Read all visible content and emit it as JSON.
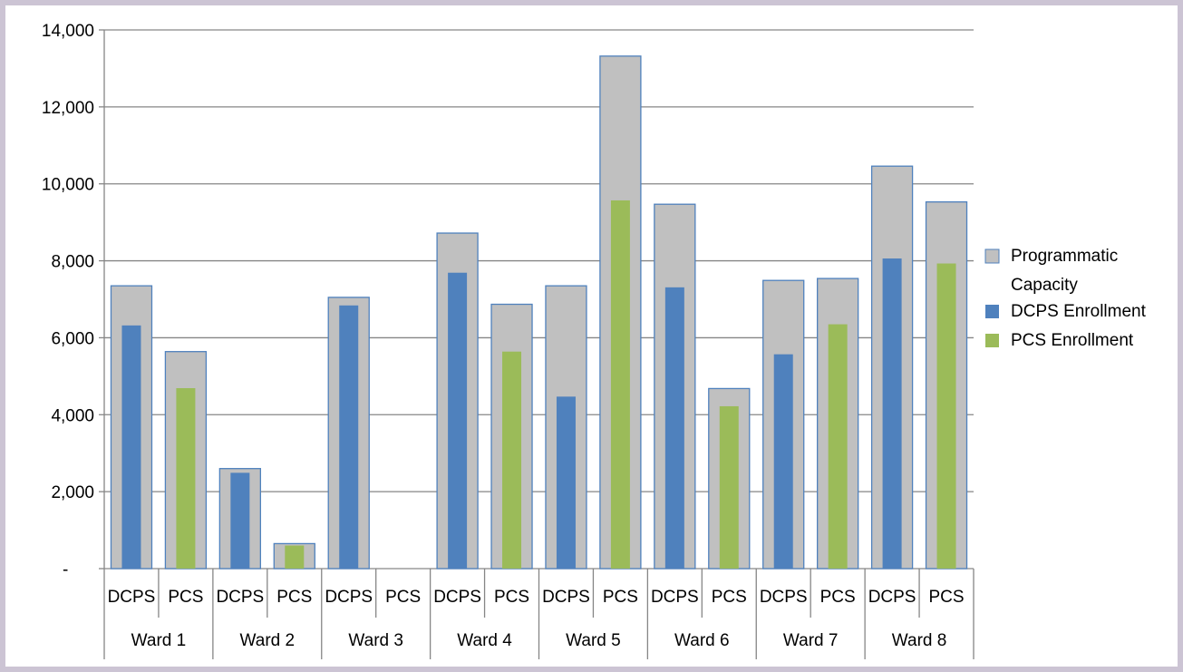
{
  "chart_data": {
    "type": "bar",
    "groups": [
      "Ward 1",
      "Ward 2",
      "Ward 3",
      "Ward 4",
      "Ward 5",
      "Ward 6",
      "Ward 7",
      "Ward 8"
    ],
    "subcategories": [
      "DCPS",
      "PCS"
    ],
    "categories": [
      {
        "group": "Ward 1",
        "label": "DCPS"
      },
      {
        "group": "Ward 1",
        "label": "PCS"
      },
      {
        "group": "Ward 2",
        "label": "DCPS"
      },
      {
        "group": "Ward 2",
        "label": "PCS"
      },
      {
        "group": "Ward 3",
        "label": "DCPS"
      },
      {
        "group": "Ward 3",
        "label": "PCS"
      },
      {
        "group": "Ward 4",
        "label": "DCPS"
      },
      {
        "group": "Ward 4",
        "label": "PCS"
      },
      {
        "group": "Ward 5",
        "label": "DCPS"
      },
      {
        "group": "Ward 5",
        "label": "PCS"
      },
      {
        "group": "Ward 6",
        "label": "DCPS"
      },
      {
        "group": "Ward 6",
        "label": "PCS"
      },
      {
        "group": "Ward 7",
        "label": "DCPS"
      },
      {
        "group": "Ward 7",
        "label": "PCS"
      },
      {
        "group": "Ward 8",
        "label": "DCPS"
      },
      {
        "group": "Ward 8",
        "label": "PCS"
      }
    ],
    "series": [
      {
        "name": "Programmatic Capacity",
        "color": "#c0c0c0",
        "values": [
          7350,
          5640,
          2600,
          650,
          7050,
          0,
          8720,
          6870,
          7350,
          13320,
          9470,
          4680,
          7490,
          7540,
          10460,
          9530
        ]
      },
      {
        "name": "DCPS Enrollment",
        "color": "#4f81bd",
        "values": [
          6320,
          null,
          2490,
          null,
          6840,
          null,
          7690,
          null,
          4470,
          null,
          7310,
          null,
          5570,
          null,
          8060,
          null
        ]
      },
      {
        "name": "PCS Enrollment",
        "color": "#9bbb59",
        "values": [
          null,
          4690,
          null,
          600,
          null,
          0,
          null,
          5640,
          null,
          9570,
          null,
          4220,
          null,
          6350,
          null,
          7930
        ]
      }
    ],
    "y_ticks": [
      0,
      2000,
      4000,
      6000,
      8000,
      10000,
      12000,
      14000
    ],
    "y_tick_labels": [
      "-",
      "2,000",
      "4,000",
      "6,000",
      "8,000",
      "10,000",
      "12,000",
      "14,000"
    ],
    "ylim": [
      0,
      14000
    ],
    "grid": true,
    "legend_position": "right",
    "legend": [
      {
        "lines": [
          "Programmatic",
          "Capacity"
        ],
        "color": "#c0c0c0"
      },
      {
        "lines": [
          "DCPS Enrollment"
        ],
        "color": "#4f81bd"
      },
      {
        "lines": [
          "PCS Enrollment"
        ],
        "color": "#9bbb59"
      }
    ],
    "title": "",
    "xlabel": "",
    "ylabel": ""
  }
}
